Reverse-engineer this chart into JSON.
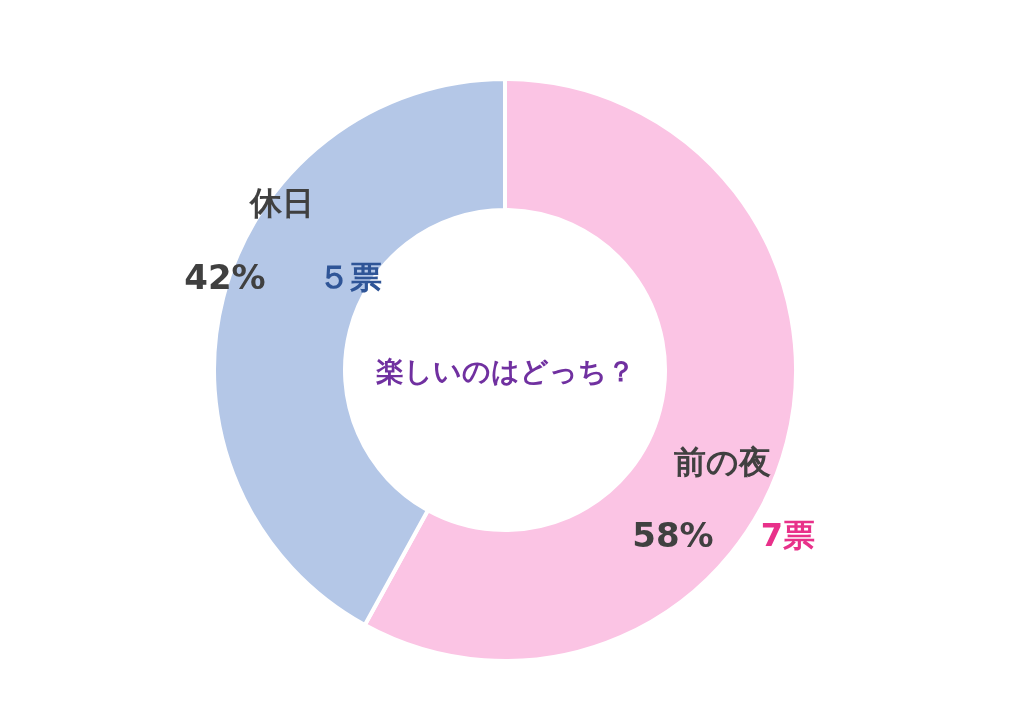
{
  "chart_data": {
    "type": "donut",
    "title": "楽しいのはどっち？",
    "categories": [
      "前の夜",
      "休日"
    ],
    "values": [
      58,
      42
    ],
    "value_labels": [
      "58%",
      "42%"
    ],
    "colors": [
      "#fbc4e4",
      "#b4c7e7"
    ],
    "annotations": [
      "7票",
      "５票"
    ]
  }
}
